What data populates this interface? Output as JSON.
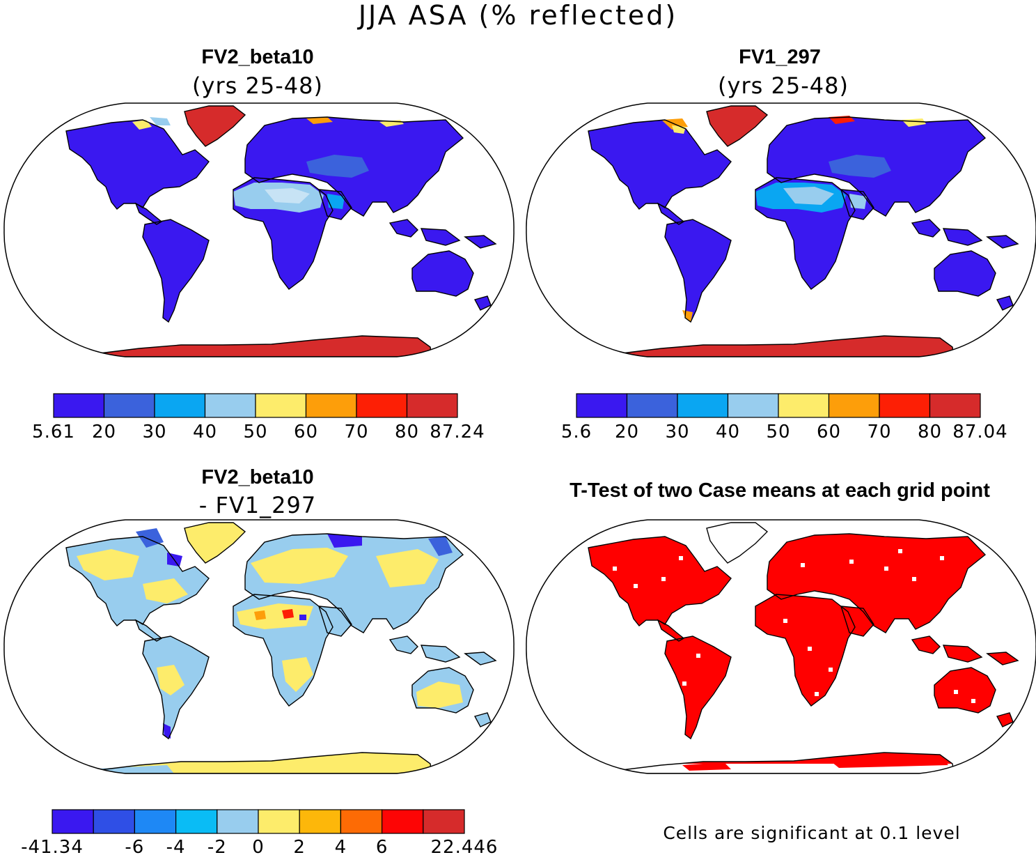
{
  "figure_title": "JJA ASA (% reflected)",
  "footnote": "Cells are significant at 0.1 level",
  "colors": {
    "land_low": "#3a18f0",
    "antarctica": "#d62b2b",
    "greenland": "#d62b2b",
    "significant": "#ff0000",
    "coastline": "#000000",
    "ocean": "#ffffff"
  },
  "panels": [
    {
      "title": "FV2_beta10",
      "subtitle": "(yrs 25-48)"
    },
    {
      "title": "FV1_297",
      "subtitle": "(yrs 25-48)"
    },
    {
      "title": "FV2_beta10",
      "subtitle": "- FV1_297"
    },
    {
      "title": "T-Test of two Case means at each grid point"
    }
  ],
  "chart_data": [
    {
      "type": "heatmap",
      "title": "FV2_beta10",
      "subtitle": "(yrs 25-48)",
      "colorbar": {
        "colors": [
          "#3a18f0",
          "#3b62dc",
          "#0aa6f2",
          "#98cdee",
          "#fdec6b",
          "#fd9e0a",
          "#fd1f05",
          "#d62b2b"
        ],
        "tick_labels": [
          "5.61",
          "20",
          "30",
          "40",
          "50",
          "60",
          "70",
          "80",
          "87.24"
        ]
      }
    },
    {
      "type": "heatmap",
      "title": "FV1_297",
      "subtitle": "(yrs 25-48)",
      "colorbar": {
        "colors": [
          "#3a18f0",
          "#3b62dc",
          "#0aa6f2",
          "#98cdee",
          "#fdec6b",
          "#fd9e0a",
          "#fd1f05",
          "#d62b2b"
        ],
        "tick_labels": [
          "5.6",
          "20",
          "30",
          "40",
          "50",
          "60",
          "70",
          "80",
          "87.04"
        ]
      }
    },
    {
      "type": "heatmap",
      "title": "FV2_beta10",
      "subtitle": "- FV1_297",
      "colorbar": {
        "colors": [
          "#3a18f0",
          "#2f4fe6",
          "#1e88f5",
          "#0abcf5",
          "#98cdee",
          "#fdec6b",
          "#fdb70a",
          "#fd6b05",
          "#fd0505",
          "#d62b2b"
        ],
        "tick_labels": [
          "-41.34",
          "",
          "-6",
          "-4",
          "-2",
          "0",
          "2",
          "4",
          "6",
          "",
          "22.446"
        ]
      }
    },
    {
      "type": "heatmap",
      "title": "T-Test of two Case means at each grid point",
      "note": "Cells are significant at 0.1 level"
    }
  ]
}
